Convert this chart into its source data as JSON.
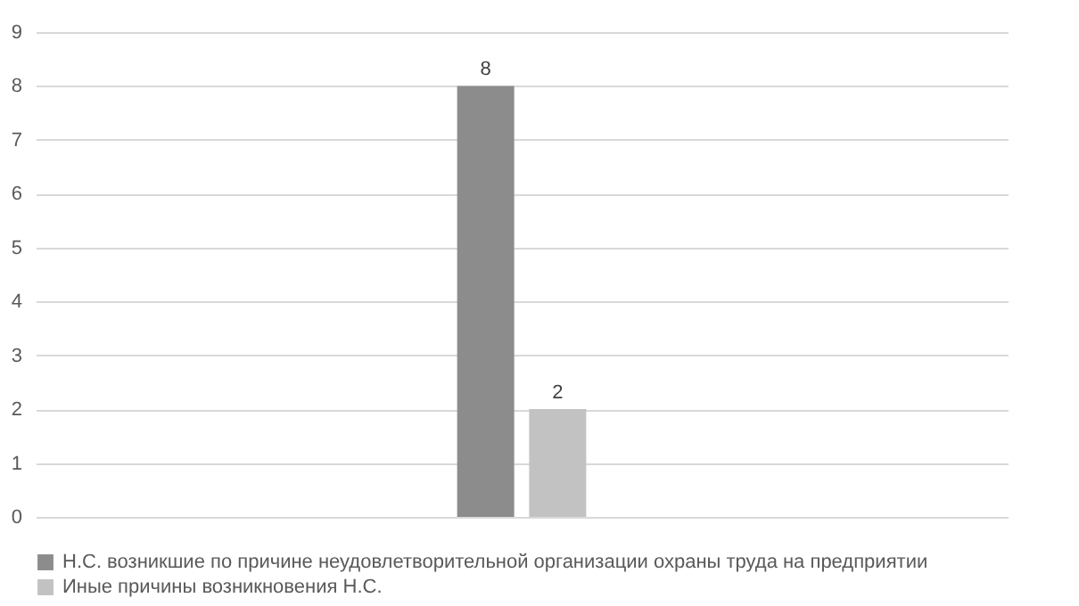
{
  "chart_data": {
    "type": "bar",
    "categories": [
      null
    ],
    "series": [
      {
        "name": "Н.С. возникшие по причине неудовлетворительной организации охраны труда на предприятии",
        "color": "#8c8c8c",
        "values": [
          8
        ]
      },
      {
        "name": "Иные причины возникновения Н.С.",
        "color": "#c2c2c2",
        "values": [
          2
        ]
      }
    ],
    "ylim": [
      0,
      9
    ],
    "yticks": [
      0,
      1,
      2,
      3,
      4,
      5,
      6,
      7,
      8,
      9
    ],
    "grid": "y",
    "legend": "bottom",
    "data_labels": true
  }
}
